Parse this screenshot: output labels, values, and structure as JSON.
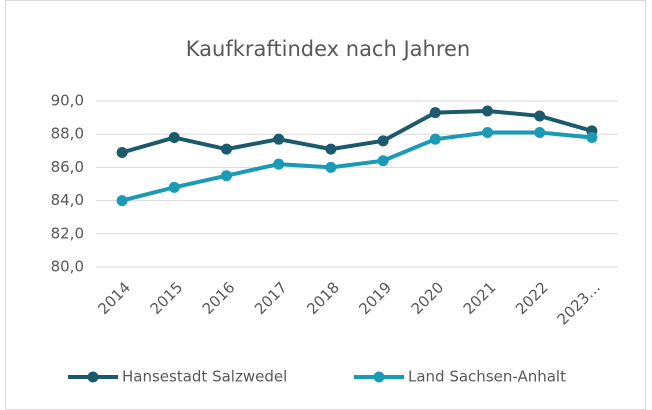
{
  "chart_data": {
    "type": "line",
    "title": "Kaufkraftindex nach Jahren",
    "categories": [
      "2014",
      "2015",
      "2016",
      "2017",
      "2018",
      "2019",
      "2020",
      "2021",
      "2022",
      "2023…"
    ],
    "series": [
      {
        "name": "Hansestadt Salzwedel",
        "color": "#1b5a6d",
        "values": [
          86.9,
          87.8,
          87.1,
          87.7,
          87.1,
          87.6,
          89.3,
          89.4,
          89.1,
          88.2
        ]
      },
      {
        "name": "Land Sachsen-Anhalt",
        "color": "#1a9ab4",
        "values": [
          84.0,
          84.8,
          85.5,
          86.2,
          86.0,
          86.4,
          87.7,
          88.1,
          88.1,
          87.8
        ]
      }
    ],
    "ylim": [
      80,
      90
    ],
    "yticks": [
      {
        "value": 80,
        "label": "80,0"
      },
      {
        "value": 82,
        "label": "82,0"
      },
      {
        "value": 84,
        "label": "84,0"
      },
      {
        "value": 86,
        "label": "86,0"
      },
      {
        "value": 88,
        "label": "88,0"
      },
      {
        "value": 90,
        "label": "90,0"
      }
    ],
    "grid": true,
    "legend": "bottom"
  }
}
